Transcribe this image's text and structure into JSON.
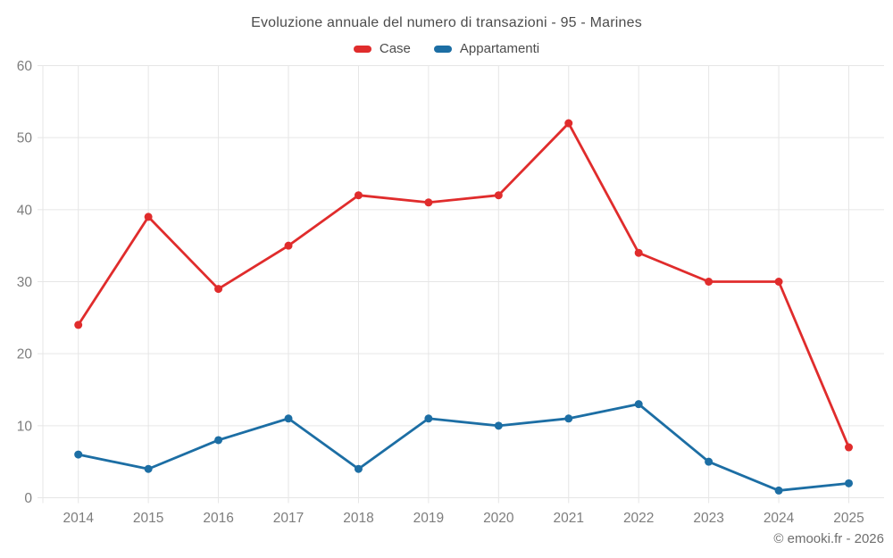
{
  "title": "Evoluzione annuale del numero di transazioni - 95 - Marines",
  "footer": "© emooki.fr - 2026",
  "chart_data": {
    "type": "line",
    "categories": [
      "2014",
      "2015",
      "2016",
      "2017",
      "2018",
      "2019",
      "2020",
      "2021",
      "2022",
      "2023",
      "2024",
      "2025"
    ],
    "series": [
      {
        "name": "Case",
        "color": "#e02c2c",
        "values": [
          24,
          39,
          29,
          35,
          42,
          41,
          42,
          52,
          34,
          30,
          30,
          7
        ]
      },
      {
        "name": "Appartamenti",
        "color": "#1c6ea4",
        "values": [
          6,
          4,
          8,
          11,
          4,
          11,
          10,
          11,
          13,
          5,
          1,
          2
        ]
      }
    ],
    "title": "Evoluzione annuale del numero di transazioni - 95 - Marines",
    "xlabel": "",
    "ylabel": "",
    "ylim": [
      0,
      60
    ],
    "ytick_step": 10,
    "grid": true,
    "legend_position": "top",
    "colors": {
      "grid": "#e6e6e6",
      "axis_text": "#7d7d7d",
      "title_text": "#4c4c4c"
    }
  }
}
